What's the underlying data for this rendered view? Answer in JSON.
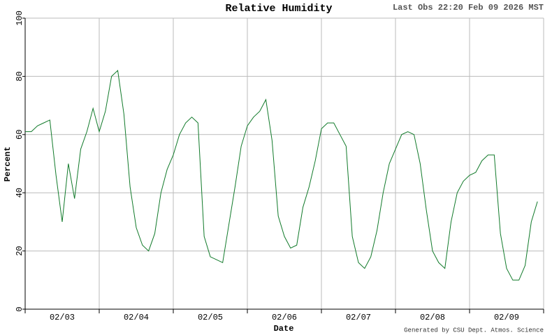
{
  "chart_data": {
    "type": "line",
    "title": "Relative Humidity",
    "subtitle": "Last Obs 22:20 Feb 09 2026 MST",
    "x_label": "Date",
    "y_label": "Percent",
    "footer": "Generated by CSU Dept. Atmos. Science",
    "x": [
      0,
      2,
      4,
      6,
      8,
      10,
      12,
      14,
      16,
      18,
      20,
      22,
      24,
      26,
      28,
      30,
      32,
      34,
      36,
      38,
      40,
      42,
      44,
      46,
      48,
      50,
      52,
      54,
      56,
      58,
      60,
      62,
      64,
      66,
      68,
      70,
      72,
      74,
      76,
      78,
      80,
      82,
      84,
      86,
      88,
      90,
      92,
      94,
      96,
      98,
      100,
      102,
      104,
      106,
      108,
      110,
      112,
      114,
      116,
      118,
      120,
      122,
      124,
      126,
      128,
      130,
      132,
      134,
      136,
      138,
      140,
      142,
      144,
      146,
      148,
      150,
      152,
      154,
      156,
      158,
      160,
      162,
      164,
      166
    ],
    "series": [
      {
        "name": "Relative Humidity",
        "color": "#117a2a",
        "values": [
          61,
          61,
          63,
          64,
          65,
          46,
          30,
          50,
          38,
          55,
          61,
          69,
          61,
          68,
          80,
          82,
          67,
          42,
          28,
          22,
          20,
          26,
          40,
          48,
          53,
          60,
          64,
          66,
          64,
          25,
          18,
          17,
          16,
          29,
          42,
          56,
          63,
          66,
          68,
          72,
          58,
          32,
          25,
          21,
          22,
          35,
          42,
          51,
          62,
          64,
          64,
          60,
          56,
          25,
          16,
          14,
          18,
          27,
          40,
          50,
          55,
          60,
          61,
          60,
          50,
          34,
          20,
          16,
          14,
          30,
          40,
          44,
          46,
          47,
          51,
          53,
          53,
          26,
          14,
          10,
          10,
          15,
          30,
          37
        ]
      }
    ],
    "xlim": [
      0,
      168
    ],
    "xgrid": [
      0,
      24,
      48,
      72,
      96,
      120,
      144,
      168
    ],
    "xticks": [
      {
        "value": 12,
        "label": "02/03"
      },
      {
        "value": 36,
        "label": "02/04"
      },
      {
        "value": 60,
        "label": "02/05"
      },
      {
        "value": 84,
        "label": "02/06"
      },
      {
        "value": 108,
        "label": "02/07"
      },
      {
        "value": 132,
        "label": "02/08"
      },
      {
        "value": 156,
        "label": "02/09"
      }
    ],
    "ylim": [
      0,
      100
    ],
    "yticks": [
      0,
      20,
      40,
      60,
      80,
      100
    ],
    "grid": true
  }
}
